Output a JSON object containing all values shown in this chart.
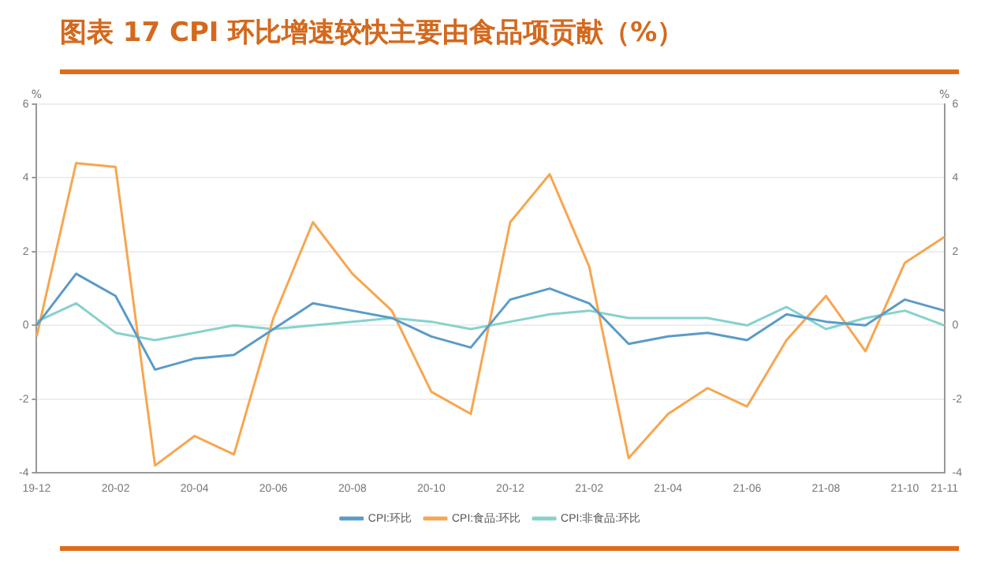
{
  "chart_data": {
    "type": "line",
    "title": "图表 17 CPI 环比增速较快主要由食品项贡献（%）",
    "ylabel": "%",
    "y2label": "%",
    "categories": [
      "19-12",
      null,
      "20-02",
      null,
      "20-04",
      null,
      "20-06",
      null,
      "20-08",
      null,
      "20-10",
      null,
      "20-12",
      null,
      "21-02",
      null,
      "21-04",
      null,
      "21-06",
      null,
      "21-08",
      null,
      "21-10",
      "21-11"
    ],
    "series": [
      {
        "name": "CPI:环比",
        "color": "#5a9bc8",
        "values": [
          0.0,
          1.4,
          0.8,
          -1.2,
          -0.9,
          -0.8,
          -0.1,
          0.6,
          0.4,
          0.2,
          -0.3,
          -0.6,
          0.7,
          1.0,
          0.6,
          -0.5,
          -0.3,
          -0.2,
          -0.4,
          0.3,
          0.1,
          0.0,
          0.7,
          0.4
        ]
      },
      {
        "name": "CPI:食品:环比",
        "color": "#f7a650",
        "values": [
          -0.3,
          4.4,
          4.3,
          -3.8,
          -3.0,
          -3.5,
          0.2,
          2.8,
          1.4,
          0.4,
          -1.8,
          -2.4,
          2.8,
          4.1,
          1.6,
          -3.6,
          -2.4,
          -1.7,
          -2.2,
          -0.4,
          0.8,
          -0.7,
          1.7,
          2.4
        ]
      },
      {
        "name": "CPI:非食品:环比",
        "color": "#86d2cc",
        "values": [
          0.1,
          0.6,
          -0.2,
          -0.4,
          -0.2,
          0.0,
          -0.1,
          0.0,
          0.1,
          0.2,
          0.1,
          -0.1,
          0.1,
          0.3,
          0.4,
          0.2,
          0.2,
          0.2,
          0.0,
          0.5,
          -0.1,
          0.2,
          0.4,
          0.0
        ]
      }
    ],
    "ylim": [
      -4,
      6
    ],
    "yticks": [
      -4,
      -2,
      0,
      2,
      4,
      6
    ],
    "y2lim": [
      -4,
      6
    ],
    "y2ticks": [
      -4,
      -2,
      0,
      2,
      4,
      6
    ],
    "grid": "y",
    "legend": "bottom",
    "marker": "none",
    "line_style": "solid"
  }
}
